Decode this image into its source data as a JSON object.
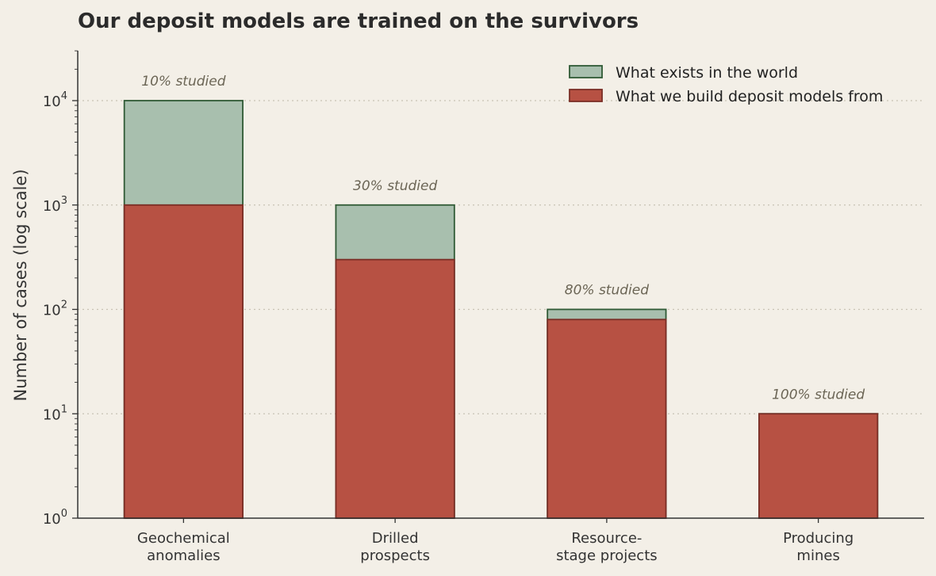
{
  "chart_data": {
    "type": "bar",
    "stacked": "overlay",
    "title": "Our deposit models are trained on the survivors",
    "xlabel": "",
    "ylabel": "Number of cases (log scale)",
    "yscale": "log",
    "ylim": [
      1,
      30000
    ],
    "yticks": [
      {
        "base": "10",
        "exp": "0",
        "value": 1
      },
      {
        "base": "10",
        "exp": "1",
        "value": 10
      },
      {
        "base": "10",
        "exp": "2",
        "value": 100
      },
      {
        "base": "10",
        "exp": "3",
        "value": 1000
      },
      {
        "base": "10",
        "exp": "4",
        "value": 10000
      }
    ],
    "grid": "y-dotted",
    "legend_position": "top-right",
    "categories": [
      {
        "lines": [
          "Geochemical",
          "anomalies"
        ]
      },
      {
        "lines": [
          "Drilled",
          "prospects"
        ]
      },
      {
        "lines": [
          "Resource-",
          "stage projects"
        ]
      },
      {
        "lines": [
          "Producing",
          "mines"
        ]
      }
    ],
    "series": [
      {
        "name": "What exists in the world",
        "values": [
          10000,
          1000,
          100,
          10
        ],
        "color": "#a8bfae",
        "edge": "#2f5a35"
      },
      {
        "name": "What we build deposit models from",
        "values": [
          1000,
          300,
          80,
          10
        ],
        "color": "#b75143",
        "edge": "#7a2e26"
      }
    ],
    "annotations": [
      "10% studied",
      "30% studied",
      "80% studied",
      "100% studied"
    ]
  }
}
